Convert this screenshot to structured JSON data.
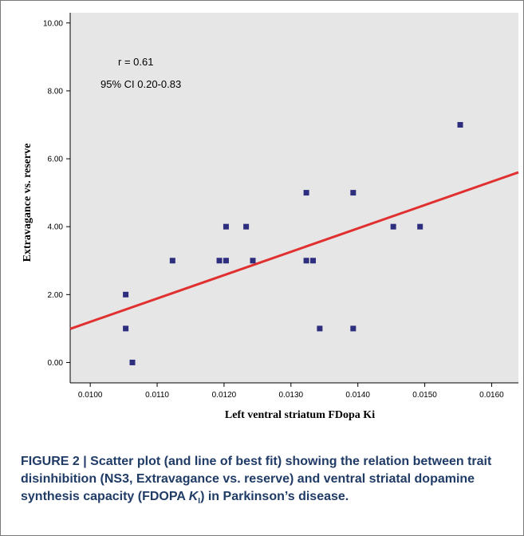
{
  "chart_data": {
    "type": "scatter",
    "xlabel": "Left ventral striatum FDopa Ki",
    "ylabel": "Extravagance vs. reserve",
    "xlim": [
      0.0097,
      0.0164
    ],
    "ylim": [
      -0.6,
      10.3
    ],
    "x_ticks": [
      0.01,
      0.011,
      0.012,
      0.013,
      0.014,
      0.015,
      0.016
    ],
    "x_tick_labels": [
      "0.0100",
      "0.0110",
      "0.0120",
      "0.0130",
      "0.0140",
      "0.0150",
      "0.0160"
    ],
    "y_ticks": [
      0,
      2,
      4,
      6,
      8,
      10
    ],
    "y_tick_labels": [
      "0.00",
      "2.00",
      "4.00",
      "6.00",
      "8.00",
      "10.00"
    ],
    "grid": false,
    "points": [
      {
        "x": 0.01053,
        "y": 2
      },
      {
        "x": 0.01053,
        "y": 1
      },
      {
        "x": 0.01063,
        "y": 0
      },
      {
        "x": 0.01123,
        "y": 3
      },
      {
        "x": 0.01193,
        "y": 3
      },
      {
        "x": 0.01203,
        "y": 3
      },
      {
        "x": 0.01203,
        "y": 4
      },
      {
        "x": 0.01233,
        "y": 4
      },
      {
        "x": 0.01243,
        "y": 3
      },
      {
        "x": 0.01323,
        "y": 5
      },
      {
        "x": 0.01323,
        "y": 3
      },
      {
        "x": 0.01333,
        "y": 3
      },
      {
        "x": 0.01343,
        "y": 1
      },
      {
        "x": 0.01393,
        "y": 5
      },
      {
        "x": 0.01393,
        "y": 1
      },
      {
        "x": 0.01453,
        "y": 4
      },
      {
        "x": 0.01493,
        "y": 4
      },
      {
        "x": 0.01553,
        "y": 7
      }
    ],
    "fit_line": {
      "x": [
        0.0097,
        0.0164
      ],
      "y": [
        0.99,
        5.6
      ]
    },
    "annotations": [
      "r = 0.61",
      "95% CI 0.20-0.83"
    ],
    "colors": {
      "points": "#2e2e7e",
      "fit_line": "#e03030",
      "plot_bg": "#e6e6e6"
    }
  },
  "caption": {
    "label": "FIGURE 2 | ",
    "text_1": "Scatter plot (and line of best fit) showing the relation between trait disinhibition (NS3, Extravagance vs. reserve) and ventral striatal dopamine synthesis capacity (FDOPA ",
    "k_letter": "K",
    "k_sub": "I",
    "text_2": ") in Parkinson’s disease."
  }
}
